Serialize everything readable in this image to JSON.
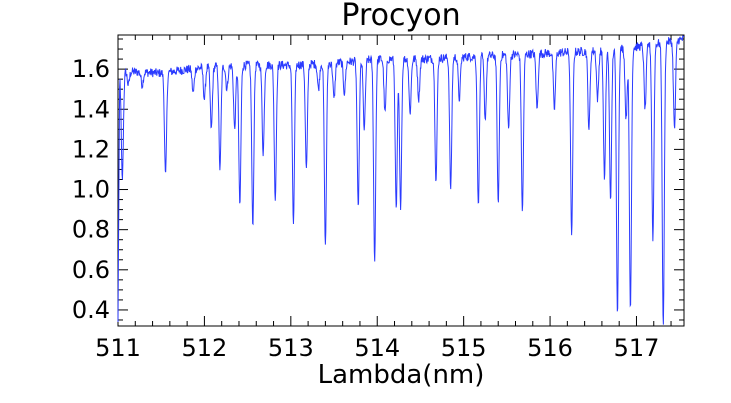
{
  "chart_data": {
    "type": "line",
    "title": "Procyon",
    "xlabel": "Lambda(nm)",
    "ylabel": "",
    "xlim": [
      511.0,
      517.55
    ],
    "ylim": [
      0.32,
      1.77
    ],
    "x_ticks": [
      511,
      512,
      513,
      514,
      515,
      516,
      517
    ],
    "x_tick_labels": [
      "511",
      "512",
      "513",
      "514",
      "515",
      "516",
      "517"
    ],
    "y_ticks": [
      0.4,
      0.6,
      0.8,
      1.0,
      1.2,
      1.4,
      1.6
    ],
    "y_tick_labels": [
      "0.4",
      "0.6",
      "0.8",
      "1.0",
      "1.2",
      "1.4",
      "1.6"
    ],
    "grid": false,
    "line_color": "#2b3bff",
    "series": [
      {
        "name": "",
        "continuum": [
          [
            511.0,
            1.59
          ],
          [
            511.5,
            1.58
          ],
          [
            512.0,
            1.61
          ],
          [
            512.5,
            1.62
          ],
          [
            513.0,
            1.62
          ],
          [
            513.5,
            1.63
          ],
          [
            514.0,
            1.65
          ],
          [
            514.5,
            1.65
          ],
          [
            515.0,
            1.66
          ],
          [
            515.5,
            1.67
          ],
          [
            516.0,
            1.68
          ],
          [
            516.5,
            1.69
          ],
          [
            517.0,
            1.71
          ],
          [
            517.55,
            1.75
          ]
        ],
        "absorption_lines": [
          [
            511.05,
            1.05
          ],
          [
            511.12,
            1.52
          ],
          [
            511.28,
            1.52
          ],
          [
            511.55,
            1.07
          ],
          [
            511.87,
            1.48
          ],
          [
            512.0,
            1.45
          ],
          [
            512.08,
            1.3
          ],
          [
            512.18,
            1.1
          ],
          [
            512.26,
            1.5
          ],
          [
            512.35,
            1.3
          ],
          [
            512.41,
            0.92
          ],
          [
            512.56,
            0.82
          ],
          [
            512.68,
            1.18
          ],
          [
            512.82,
            0.95
          ],
          [
            513.03,
            0.83
          ],
          [
            513.18,
            1.1
          ],
          [
            513.32,
            1.5
          ],
          [
            513.4,
            0.72
          ],
          [
            513.5,
            1.45
          ],
          [
            513.62,
            1.48
          ],
          [
            513.78,
            0.91
          ],
          [
            513.85,
            1.3
          ],
          [
            513.97,
            0.64
          ],
          [
            514.09,
            1.38
          ],
          [
            514.22,
            0.9
          ],
          [
            514.27,
            0.91
          ],
          [
            514.38,
            1.38
          ],
          [
            514.48,
            1.45
          ],
          [
            514.68,
            1.04
          ],
          [
            514.85,
            1.0
          ],
          [
            514.95,
            1.45
          ],
          [
            515.17,
            0.92
          ],
          [
            515.25,
            1.35
          ],
          [
            515.4,
            0.93
          ],
          [
            515.52,
            1.3
          ],
          [
            515.68,
            0.89
          ],
          [
            515.85,
            1.4
          ],
          [
            516.05,
            1.4
          ],
          [
            516.25,
            0.77
          ],
          [
            516.45,
            1.3
          ],
          [
            516.55,
            1.45
          ],
          [
            516.63,
            1.05
          ],
          [
            516.7,
            0.95
          ],
          [
            516.78,
            0.38
          ],
          [
            516.88,
            1.35
          ],
          [
            516.93,
            0.4
          ],
          [
            517.1,
            1.4
          ],
          [
            517.19,
            0.75
          ],
          [
            517.31,
            0.32
          ],
          [
            517.44,
            1.3
          ]
        ]
      }
    ]
  }
}
